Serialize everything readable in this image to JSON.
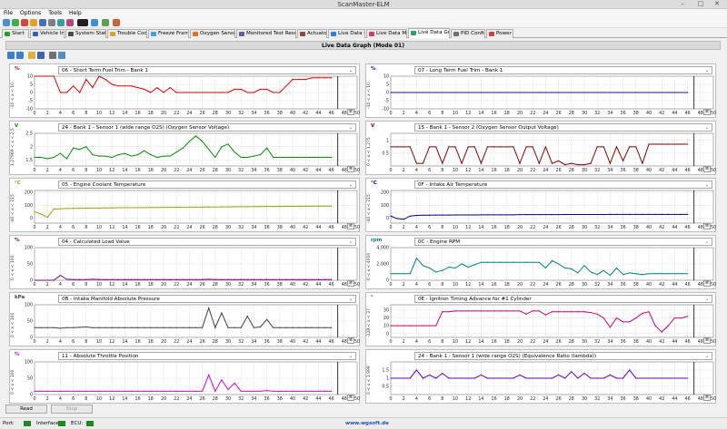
{
  "app": {
    "title": "ScanMaster-ELM"
  },
  "menu": [
    "File",
    "Options",
    "Tools",
    "Help"
  ],
  "tabs": [
    {
      "label": "Start",
      "icon": "play-icon"
    },
    {
      "label": "Vehicle Info",
      "icon": "car-icon"
    },
    {
      "label": "System Status",
      "icon": "monitor-icon"
    },
    {
      "label": "Trouble Codes",
      "icon": "warning-icon"
    },
    {
      "label": "Freeze Frames",
      "icon": "snowflake-icon"
    },
    {
      "label": "Oxygen Sensors",
      "icon": "sensor-icon"
    },
    {
      "label": "Monitored Test Results",
      "icon": "test-icon"
    },
    {
      "label": "Actuator",
      "icon": "actuator-icon"
    },
    {
      "label": "Live Data Grid",
      "icon": "grid-icon"
    },
    {
      "label": "Live Data Meter",
      "icon": "meter-icon"
    },
    {
      "label": "Live Data Graph",
      "icon": "graph-icon"
    },
    {
      "label": "PID Config",
      "icon": "config-icon"
    },
    {
      "label": "Power",
      "icon": "power-icon"
    }
  ],
  "panel": {
    "title": "Live Data Graph (Mode 01)"
  },
  "xticks": [
    "0",
    "2",
    "4",
    "6",
    "8",
    "10",
    "12",
    "14",
    "16",
    "18",
    "20",
    "22",
    "24",
    "26",
    "28",
    "30",
    "32",
    "34",
    "36",
    "38",
    "40",
    "42",
    "44",
    "46",
    "48",
    "50"
  ],
  "graphs": [
    {
      "pid": "06 - Short Term Fuel Trim - Bank 1",
      "unit": "%",
      "range": "-10 < x < 10",
      "yticks": [
        "10",
        "5",
        "0",
        "-5",
        "-10"
      ],
      "ymin": -10,
      "ymax": 10,
      "color": "#e00000",
      "values": [
        10,
        10,
        10,
        10,
        0,
        0,
        4,
        0,
        8,
        3,
        10,
        8,
        5,
        4,
        4,
        4,
        3,
        2,
        0,
        3,
        0,
        3,
        0,
        0,
        0,
        0,
        0,
        0,
        0,
        0,
        0,
        2,
        2,
        0,
        0,
        2,
        2,
        0,
        0,
        4,
        8,
        8,
        8,
        9,
        9,
        9,
        9
      ]
    },
    {
      "pid": "07 - Long Term Fuel Trim - Bank 1",
      "unit": "%",
      "range": "-10 < x < 10",
      "yticks": [
        "10",
        "5",
        "0",
        "-5",
        "-10"
      ],
      "ymin": -10,
      "ymax": 10,
      "color": "#1010c0",
      "values": [
        0,
        0,
        0,
        0,
        0,
        0,
        0,
        0,
        0,
        0,
        0,
        0,
        0,
        0,
        0,
        0,
        0,
        0,
        0,
        0,
        0,
        0,
        0,
        0,
        0,
        0,
        0,
        0,
        0,
        0,
        0,
        0,
        0,
        0,
        0,
        0,
        0,
        0,
        0,
        0,
        0,
        0,
        0,
        0,
        0,
        0,
        0
      ]
    },
    {
      "pid": "24 - Bank 1 - Sensor 1 (wide range O2S) (Oxygen Sensor Voltage)",
      "unit": "V",
      "range": "1.27969 < x < 2.5",
      "yticks": [
        "2.5",
        "2",
        "1.5"
      ],
      "ymin": 1.27969,
      "ymax": 2.5,
      "color": "#0a8a0a",
      "values": [
        1.6,
        1.6,
        1.55,
        1.6,
        1.75,
        1.55,
        1.95,
        1.9,
        2.0,
        1.7,
        1.65,
        1.65,
        1.6,
        1.7,
        1.75,
        1.65,
        1.7,
        1.85,
        1.7,
        1.6,
        1.65,
        1.65,
        1.8,
        1.95,
        2.2,
        2.4,
        2.2,
        1.9,
        1.6,
        2.0,
        2.1,
        1.8,
        1.6,
        1.6,
        1.65,
        1.7,
        1.95,
        1.6,
        1.6,
        1.6,
        1.6,
        1.6,
        1.6,
        1.6,
        1.6,
        1.6,
        1.6
      ]
    },
    {
      "pid": "15 - Bank 1 - Sensor 2 (Oxygen Sensor Output Voltage)",
      "unit": "V",
      "range": "0 < x < 1.275",
      "yticks": [
        "1",
        "0.5"
      ],
      "ymin": 0,
      "ymax": 1.275,
      "color": "#800000",
      "values": [
        0.75,
        0.75,
        0.75,
        0.75,
        0.1,
        0.1,
        0.75,
        0.75,
        0.1,
        0.75,
        0.75,
        0.1,
        0.75,
        0.75,
        0.1,
        0.75,
        0.75,
        0.75,
        0.75,
        0.75,
        0.1,
        0.75,
        0.75,
        0.1,
        0.75,
        0.1,
        0.2,
        0.05,
        0.1,
        0.05,
        0.05,
        0.1,
        0.75,
        0.75,
        0.1,
        0.75,
        0.2,
        0.75,
        0.75,
        0.1,
        0.85,
        0.85,
        0.85,
        0.85,
        0.85,
        0.85,
        0.85
      ]
    },
    {
      "pid": "05 - Engine Coolant Temperature",
      "unit": "°C",
      "range": "-40 < x < 215",
      "yticks": [
        "200",
        "100",
        "0"
      ],
      "ymin": -40,
      "ymax": 215,
      "color": "#a0a000",
      "values": [
        50,
        30,
        5,
        70,
        72,
        74,
        75,
        76,
        77,
        78,
        78,
        79,
        79,
        80,
        80,
        80,
        81,
        81,
        82,
        82,
        83,
        83,
        84,
        84,
        85,
        85,
        86,
        86,
        86,
        87,
        87,
        88,
        88,
        88,
        89,
        89,
        90,
        90,
        90,
        91,
        91,
        92,
        92,
        92,
        93,
        93,
        93
      ]
    },
    {
      "pid": "0F - Intake Air Temperature",
      "unit": "°C",
      "range": "-40 < x < 215",
      "yticks": [
        "200",
        "100",
        "0"
      ],
      "ymin": -40,
      "ymax": 215,
      "color": "#000090",
      "values": [
        15,
        -5,
        -10,
        15,
        20,
        22,
        22,
        23,
        23,
        23,
        24,
        24,
        24,
        24,
        25,
        25,
        25,
        25,
        25,
        25,
        26,
        26,
        26,
        26,
        26,
        26,
        26,
        27,
        27,
        27,
        27,
        27,
        27,
        27,
        28,
        28,
        28,
        28,
        28,
        28,
        28,
        28,
        28,
        28,
        28,
        28,
        28
      ]
    },
    {
      "pid": "04 - Calculated Load Value",
      "unit": "%",
      "range": "0 < x < 100",
      "yticks": [
        "100",
        "50",
        "0"
      ],
      "ymin": 0,
      "ymax": 100,
      "color": "#800080",
      "values": [
        0,
        0,
        0,
        0,
        15,
        3,
        2,
        2,
        2,
        3,
        2,
        2,
        2,
        2,
        2,
        2,
        2,
        2,
        2,
        2,
        2,
        2,
        2,
        2,
        2,
        2,
        2,
        3,
        2,
        2,
        2,
        2,
        2,
        2,
        2,
        2,
        2,
        2,
        2,
        2,
        2,
        2,
        2,
        2,
        2,
        2,
        2
      ]
    },
    {
      "pid": "0C - Engine RPM",
      "unit": "rpm",
      "range": "0 < x < 4000",
      "yticks": [
        "4,000",
        "2,000",
        "0"
      ],
      "ymin": 0,
      "ymax": 4000,
      "color": "#008080",
      "values": [
        800,
        800,
        800,
        800,
        2700,
        1800,
        1500,
        1000,
        1200,
        1600,
        1500,
        2000,
        1600,
        1900,
        2200,
        2200,
        2200,
        2200,
        2200,
        2200,
        2200,
        2200,
        2200,
        2200,
        1500,
        2400,
        2000,
        1500,
        1400,
        900,
        1800,
        1000,
        700,
        1200,
        600,
        1500,
        700,
        900,
        800,
        700,
        800,
        800,
        800,
        800,
        800,
        800,
        800
      ]
    },
    {
      "pid": "0B - Intake Manifold Absolute Pressure",
      "unit": "kPa",
      "range": "0 < x < 100",
      "yticks": [
        "100",
        "50",
        "0"
      ],
      "ymin": 0,
      "ymax": 100,
      "color": "#404040",
      "values": [
        30,
        30,
        30,
        30,
        28,
        30,
        30,
        31,
        32,
        30,
        30,
        30,
        30,
        30,
        30,
        30,
        30,
        30,
        30,
        30,
        30,
        30,
        30,
        30,
        30,
        30,
        30,
        90,
        30,
        75,
        30,
        30,
        30,
        65,
        30,
        32,
        55,
        30,
        30,
        30,
        30,
        30,
        30,
        30,
        30,
        30,
        30
      ]
    },
    {
      "pid": "0E - Ignition Timing Advance for #1 Cylinder",
      "unit": "°",
      "range": "-128 < x < 37",
      "yticks": [
        "30",
        "20",
        "10",
        "0"
      ],
      "ymin": -5,
      "ymax": 37,
      "color": "#d0006a",
      "values": [
        10,
        10,
        10,
        10,
        10,
        10,
        10,
        10,
        28,
        28,
        29,
        29,
        29,
        29,
        29,
        29,
        29,
        29,
        29,
        29,
        29,
        25,
        29,
        29,
        24,
        28,
        28,
        28,
        28,
        28,
        28,
        27,
        25,
        20,
        8,
        20,
        15,
        15,
        20,
        26,
        28,
        10,
        2,
        10,
        20,
        20,
        22
      ]
    },
    {
      "pid": "11 - Absolute Throttle Position",
      "unit": "%",
      "range": "0 < x < 100",
      "yticks": [
        "100",
        "50",
        "0"
      ],
      "ymin": 0,
      "ymax": 100,
      "color": "#e000e0",
      "values": [
        10,
        10,
        10,
        10,
        10,
        10,
        10,
        10,
        10,
        10,
        10,
        10,
        10,
        10,
        10,
        10,
        10,
        10,
        10,
        10,
        10,
        10,
        10,
        10,
        10,
        10,
        10,
        60,
        10,
        45,
        15,
        35,
        10,
        10,
        10,
        10,
        12,
        10,
        10,
        10,
        10,
        10,
        10,
        10,
        10,
        10,
        10
      ]
    },
    {
      "pid": "24 - Bank 1 - Sensor 1 (wide range O2S) (Equivalence Ratio (lambda))",
      "unit": "",
      "range": "0 < x < 1.999",
      "yticks": [
        "1.5",
        "1",
        "0.5"
      ],
      "ymin": 0,
      "ymax": 1.999,
      "color": "#6000c0",
      "values": [
        1,
        1,
        1,
        1,
        1.5,
        1,
        1.2,
        1,
        1.3,
        1,
        1,
        1,
        1,
        1,
        1.2,
        1,
        1,
        1,
        1,
        1,
        1.2,
        1,
        1,
        1,
        1,
        1,
        1.2,
        1,
        1.4,
        1,
        1.3,
        1,
        1,
        1,
        1.2,
        1,
        1,
        1.5,
        1,
        1,
        1,
        1,
        1,
        1,
        1,
        1,
        1
      ]
    }
  ],
  "buttons": {
    "read": "Read",
    "stop": "Stop"
  },
  "status": {
    "port_label": "Port:",
    "interface_label": "Interface:",
    "ecu_label": "ECU:",
    "website": "www.wgsoft.de"
  }
}
